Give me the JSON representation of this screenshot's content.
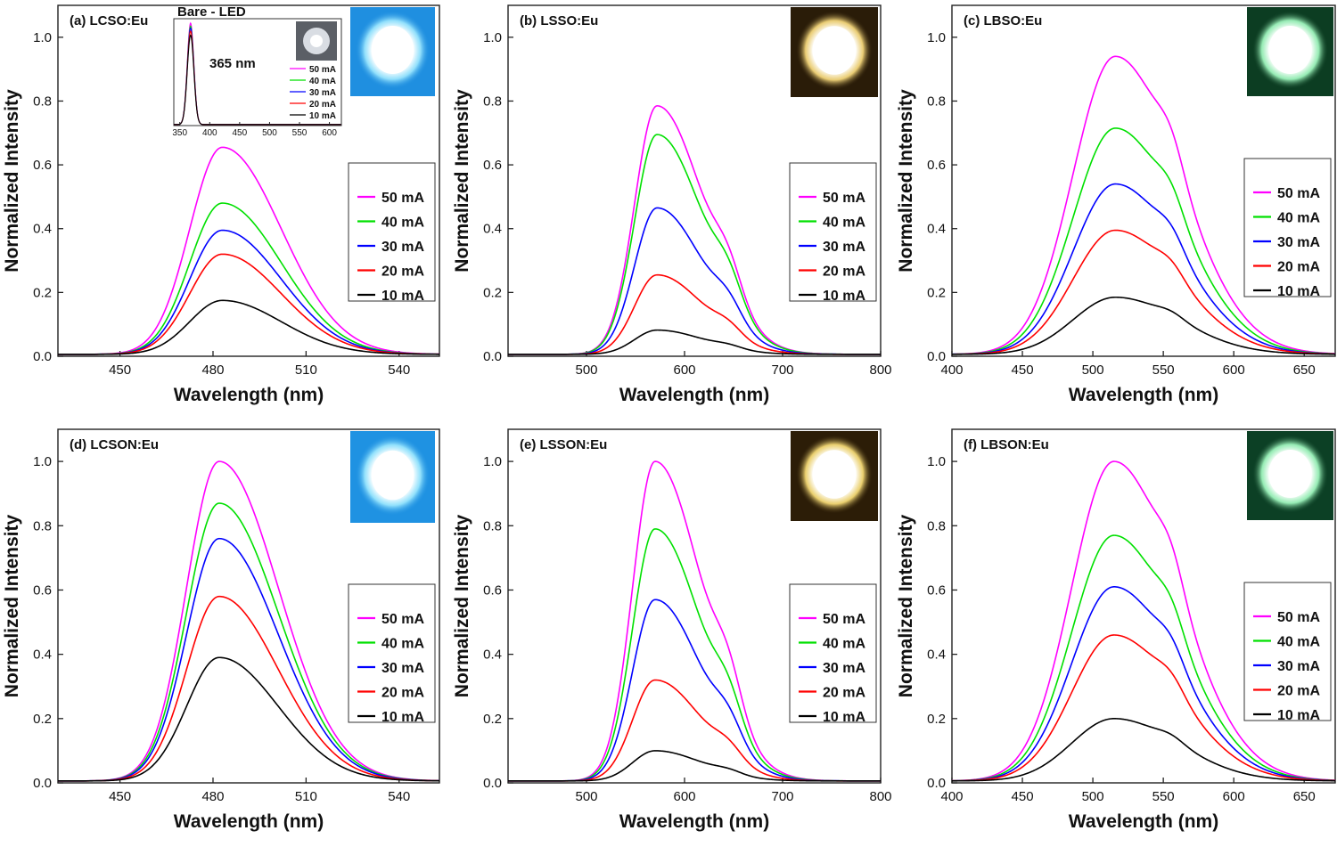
{
  "legend_labels": [
    "50 mA",
    "40 mA",
    "30 mA",
    "20 mA",
    "10 mA"
  ],
  "colors": {
    "50 mA": "#ff00ff",
    "40 mA": "#00e000",
    "30 mA": "#0000ff",
    "20 mA": "#ff0000",
    "10 mA": "#000000"
  },
  "chart_data": [
    {
      "type": "line",
      "panel": "(a) LCSO:Eu",
      "xlabel": "Wavelength (nm)",
      "ylabel": "Normalized Intensity",
      "xlim": [
        430,
        553
      ],
      "ylim": [
        0,
        1.1
      ],
      "xticks": [
        450,
        480,
        510,
        540
      ],
      "yticks": [
        0.0,
        0.2,
        0.4,
        0.6,
        0.8,
        1.0
      ],
      "peak_nm": 483,
      "legend": "right",
      "series": [
        {
          "name": "50 mA",
          "peak": 0.655
        },
        {
          "name": "40 mA",
          "peak": 0.48
        },
        {
          "name": "30 mA",
          "peak": 0.395
        },
        {
          "name": "20 mA",
          "peak": 0.32
        },
        {
          "name": "10 mA",
          "peak": 0.175
        }
      ],
      "inset": {
        "title": "Bare - LED",
        "annotation": "365 nm",
        "xticks": [
          350,
          400,
          450,
          500,
          550,
          600
        ],
        "xlim": [
          340,
          620
        ],
        "peak_nm": 368,
        "series": [
          {
            "name": "50 mA",
            "peak": 1.0
          },
          {
            "name": "40 mA",
            "peak": 0.97
          },
          {
            "name": "30 mA",
            "peak": 0.95
          },
          {
            "name": "20 mA",
            "peak": 0.92
          },
          {
            "name": "10 mA",
            "peak": 0.88
          }
        ]
      }
    },
    {
      "type": "line",
      "panel": "(b) LSSO:Eu",
      "xlabel": "Wavelength (nm)",
      "ylabel": "Normalized Intensity",
      "xlim": [
        420,
        800
      ],
      "ylim": [
        0,
        1.1
      ],
      "xticks": [
        500,
        600,
        700,
        800
      ],
      "yticks": [
        0.0,
        0.2,
        0.4,
        0.6,
        0.8,
        1.0
      ],
      "peak_nm": 572,
      "legend": "right",
      "series": [
        {
          "name": "50 mA",
          "peak": 0.785
        },
        {
          "name": "40 mA",
          "peak": 0.695
        },
        {
          "name": "30 mA",
          "peak": 0.465
        },
        {
          "name": "20 mA",
          "peak": 0.255
        },
        {
          "name": "10 mA",
          "peak": 0.082
        }
      ]
    },
    {
      "type": "line",
      "panel": "(c) LBSO:Eu",
      "xlabel": "Wavelength (nm)",
      "ylabel": "Normalized Intensity",
      "xlim": [
        400,
        672
      ],
      "ylim": [
        0,
        1.1
      ],
      "xticks": [
        400,
        450,
        500,
        550,
        600,
        650
      ],
      "yticks": [
        0.0,
        0.2,
        0.4,
        0.6,
        0.8,
        1.0
      ],
      "peak_nm": 516,
      "legend": "right",
      "series": [
        {
          "name": "50 mA",
          "peak": 0.94
        },
        {
          "name": "40 mA",
          "peak": 0.715
        },
        {
          "name": "30 mA",
          "peak": 0.54
        },
        {
          "name": "20 mA",
          "peak": 0.395
        },
        {
          "name": "10 mA",
          "peak": 0.185
        }
      ]
    },
    {
      "type": "line",
      "panel": "(d) LCSON:Eu",
      "xlabel": "Wavelength (nm)",
      "ylabel": "Normalized Intensity",
      "xlim": [
        430,
        553
      ],
      "ylim": [
        0,
        1.1
      ],
      "xticks": [
        450,
        480,
        510,
        540
      ],
      "yticks": [
        0.0,
        0.2,
        0.4,
        0.6,
        0.8,
        1.0
      ],
      "peak_nm": 482,
      "legend": "right",
      "series": [
        {
          "name": "50 mA",
          "peak": 1.0
        },
        {
          "name": "40 mA",
          "peak": 0.87
        },
        {
          "name": "30 mA",
          "peak": 0.76
        },
        {
          "name": "20 mA",
          "peak": 0.58
        },
        {
          "name": "10 mA",
          "peak": 0.39
        }
      ]
    },
    {
      "type": "line",
      "panel": "(e) LSSON:Eu",
      "xlabel": "Wavelength (nm)",
      "ylabel": "Normalized Intensity",
      "xlim": [
        420,
        800
      ],
      "ylim": [
        0,
        1.1
      ],
      "xticks": [
        500,
        600,
        700,
        800
      ],
      "yticks": [
        0.0,
        0.2,
        0.4,
        0.6,
        0.8,
        1.0
      ],
      "peak_nm": 570,
      "legend": "right",
      "series": [
        {
          "name": "50 mA",
          "peak": 1.0
        },
        {
          "name": "40 mA",
          "peak": 0.79
        },
        {
          "name": "30 mA",
          "peak": 0.57
        },
        {
          "name": "20 mA",
          "peak": 0.32
        },
        {
          "name": "10 mA",
          "peak": 0.1
        }
      ]
    },
    {
      "type": "line",
      "panel": "(f) LBSON:Eu",
      "xlabel": "Wavelength (nm)",
      "ylabel": "Normalized Intensity",
      "xlim": [
        400,
        672
      ],
      "ylim": [
        0,
        1.1
      ],
      "xticks": [
        400,
        450,
        500,
        550,
        600,
        650
      ],
      "yticks": [
        0.0,
        0.2,
        0.4,
        0.6,
        0.8,
        1.0
      ],
      "peak_nm": 515,
      "legend": "right",
      "series": [
        {
          "name": "50 mA",
          "peak": 1.0
        },
        {
          "name": "40 mA",
          "peak": 0.77
        },
        {
          "name": "30 mA",
          "peak": 0.61
        },
        {
          "name": "20 mA",
          "peak": 0.46
        },
        {
          "name": "10 mA",
          "peak": 0.2
        }
      ]
    }
  ]
}
